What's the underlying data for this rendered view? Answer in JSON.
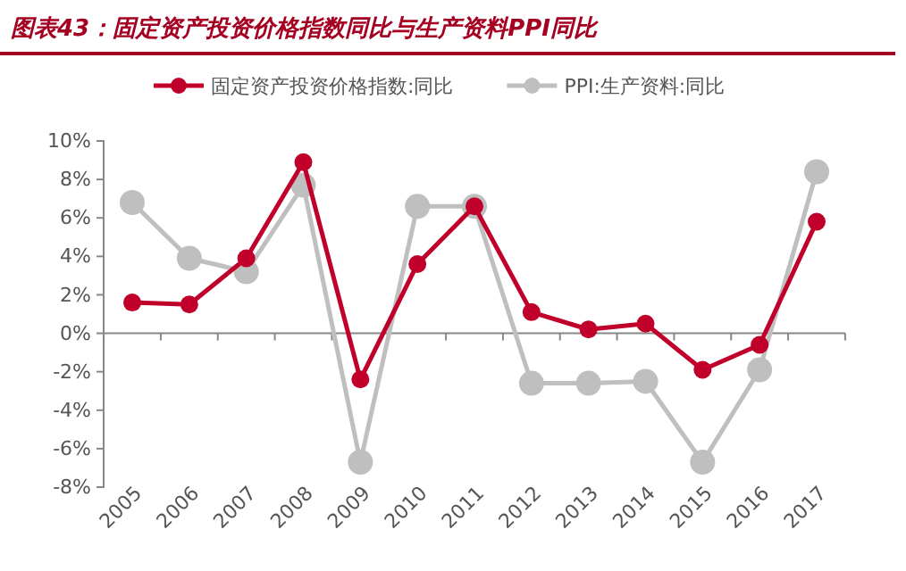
{
  "chart_data": {
    "type": "line",
    "title": "图表43：固定资产投资价格指数同比与生产资料PPI同比",
    "categories": [
      "2005",
      "2006",
      "2007",
      "2008",
      "2009",
      "2010",
      "2011",
      "2012",
      "2013",
      "2014",
      "2015",
      "2016",
      "2017"
    ],
    "series": [
      {
        "name": "固定资产投资价格指数:同比",
        "color": "#c0002a",
        "values": [
          1.6,
          1.5,
          3.9,
          8.9,
          -2.4,
          3.6,
          6.6,
          1.1,
          0.2,
          0.5,
          -1.9,
          -0.6,
          5.8
        ]
      },
      {
        "name": "PPI:生产资料:同比",
        "color": "#bfbfbf",
        "values": [
          6.8,
          3.9,
          3.2,
          7.7,
          -6.7,
          6.6,
          6.6,
          -2.6,
          -2.6,
          -2.5,
          -6.7,
          -1.9,
          8.4
        ]
      }
    ],
    "ylim": [
      -8,
      10
    ],
    "yticks": [
      {
        "value": -8,
        "label": "-8%"
      },
      {
        "value": -6,
        "label": "-6%"
      },
      {
        "value": -4,
        "label": "-4%"
      },
      {
        "value": -2,
        "label": "-2%"
      },
      {
        "value": 0,
        "label": "0%"
      },
      {
        "value": 2,
        "label": "2%"
      },
      {
        "value": 4,
        "label": "4%"
      },
      {
        "value": 6,
        "label": "6%"
      },
      {
        "value": 8,
        "label": "8%"
      },
      {
        "value": 10,
        "label": "10%"
      }
    ],
    "ref_lines": [
      {
        "axis": "y",
        "value": 0,
        "color": "#888888"
      }
    ],
    "grid": false,
    "legend": "top",
    "marker": "circle",
    "line_style": "solid"
  }
}
